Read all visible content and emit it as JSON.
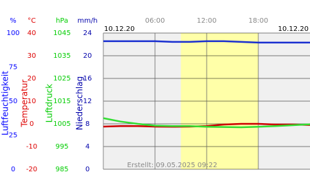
{
  "chart_data": {
    "type": "line",
    "start_label": "10.12.20",
    "end_label": "10.12.20",
    "footer": "Erstellt: 09.05.2025 09:22",
    "x": [
      0,
      2,
      4,
      6,
      8,
      10,
      12,
      14,
      16,
      18,
      20,
      22,
      24
    ],
    "xlim": [
      0,
      24
    ],
    "xticks": [
      {
        "value": 6,
        "label": "06:00"
      },
      {
        "value": 12,
        "label": "12:00"
      },
      {
        "value": 18,
        "label": "18:00"
      }
    ],
    "highlight": [
      9,
      18
    ],
    "grid": true,
    "axes": [
      {
        "unit": "%",
        "label": "Luftfeuchtigkeit",
        "color": "#0000ff",
        "ylim": [
          0,
          100
        ],
        "yticks": [
          0,
          25,
          50,
          75,
          100
        ]
      },
      {
        "unit": "°C",
        "label": "Temperatur",
        "color": "#dd0000",
        "ylim": [
          -20,
          40
        ],
        "yticks": [
          -20,
          -10,
          0,
          10,
          20,
          30,
          40
        ]
      },
      {
        "unit": "hPa",
        "label": "Luftdruck",
        "color": "#00cc00",
        "ylim": [
          985,
          1045
        ],
        "yticks": [
          985,
          995,
          1005,
          1015,
          1025,
          1035,
          1045
        ]
      },
      {
        "unit": "mm/h",
        "label": "Niederschlag",
        "color": "#0000aa",
        "ylim": [
          0,
          24
        ],
        "yticks": [
          0,
          4,
          8,
          12,
          16,
          20,
          24
        ]
      }
    ],
    "series": [
      {
        "axis": 0,
        "color": "#1a2fd0",
        "values": [
          94,
          94,
          94,
          94,
          93.5,
          93.5,
          94,
          94,
          93.5,
          93,
          93,
          93,
          93
        ]
      },
      {
        "axis": 1,
        "color": "#cc0000",
        "values": [
          -1.2,
          -1,
          -1,
          -1.2,
          -1.3,
          -1.2,
          -1,
          -0.3,
          0,
          0,
          -0.3,
          -0.3,
          -0.5
        ]
      },
      {
        "axis": 2,
        "color": "#33dd33",
        "values": [
          1007.5,
          1006,
          1005,
          1004.2,
          1004,
          1004,
          1003.7,
          1003.6,
          1003.5,
          1003.7,
          1004,
          1004.4,
          1004.8
        ]
      }
    ]
  }
}
